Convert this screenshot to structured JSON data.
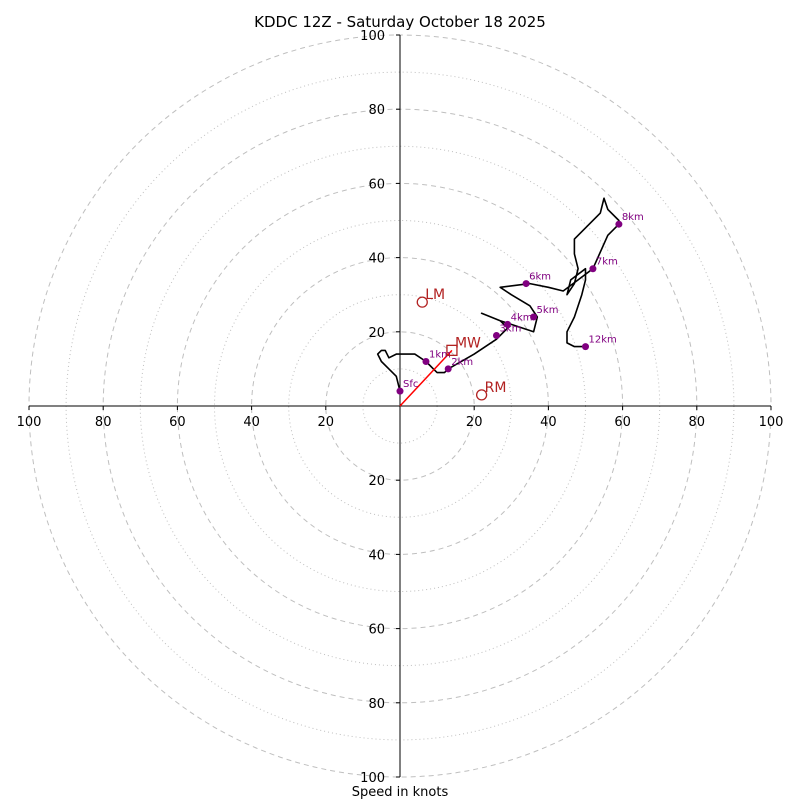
{
  "chart_data": {
    "type": "hodograph",
    "title": "KDDC 12Z - Saturday October 18 2025",
    "xlabel": "Speed in knots",
    "axis_range": [
      -100,
      100
    ],
    "ring_major": [
      20,
      40,
      60,
      80,
      100
    ],
    "ring_minor": [
      10,
      30,
      50,
      70,
      90
    ],
    "tick_values": [
      20,
      40,
      60,
      80,
      100
    ],
    "colors": {
      "trace": "#000000",
      "points": "#800080",
      "labels": "#800080",
      "motion": "#b22222",
      "mean_wind_vector": "#ff0000",
      "grid": "#bfbfbf"
    },
    "trace": [
      [
        0,
        4
      ],
      [
        -1,
        8
      ],
      [
        -3,
        10
      ],
      [
        -5,
        12
      ],
      [
        -6,
        14
      ],
      [
        -5,
        15
      ],
      [
        -4,
        15
      ],
      [
        -3,
        13
      ],
      [
        -1,
        14
      ],
      [
        4,
        14
      ],
      [
        7,
        12
      ],
      [
        9,
        10
      ],
      [
        10,
        9
      ],
      [
        12,
        9
      ],
      [
        13,
        10
      ],
      [
        20,
        14
      ],
      [
        26,
        18
      ],
      [
        29,
        21
      ],
      [
        27,
        23
      ],
      [
        22,
        25
      ],
      [
        27,
        23
      ],
      [
        30,
        22
      ],
      [
        36,
        20
      ],
      [
        37,
        24
      ],
      [
        35,
        27
      ],
      [
        30,
        30
      ],
      [
        27,
        32
      ],
      [
        35,
        33
      ],
      [
        40,
        32
      ],
      [
        44,
        31
      ],
      [
        48,
        34
      ],
      [
        52,
        37
      ],
      [
        56,
        46
      ],
      [
        59,
        49
      ],
      [
        59,
        50
      ],
      [
        56,
        53
      ],
      [
        55,
        56
      ],
      [
        54,
        52
      ],
      [
        47,
        45
      ],
      [
        47,
        41
      ],
      [
        48,
        37
      ],
      [
        47,
        33
      ],
      [
        45,
        30
      ],
      [
        46,
        34
      ],
      [
        50,
        37
      ],
      [
        50,
        34
      ],
      [
        49,
        30
      ],
      [
        47,
        24
      ],
      [
        45,
        20
      ],
      [
        45,
        17
      ],
      [
        47,
        16
      ],
      [
        50,
        16
      ]
    ],
    "heights": [
      {
        "label": "Sfc",
        "x": 0,
        "y": 4
      },
      {
        "label": "1km",
        "x": 7,
        "y": 12
      },
      {
        "label": "2km",
        "x": 13,
        "y": 10
      },
      {
        "label": "3km",
        "x": 26,
        "y": 19
      },
      {
        "label": "4km",
        "x": 29,
        "y": 22
      },
      {
        "label": "5km",
        "x": 36,
        "y": 24
      },
      {
        "label": "6km",
        "x": 34,
        "y": 33
      },
      {
        "label": "7km",
        "x": 52,
        "y": 37
      },
      {
        "label": "8km",
        "x": 59,
        "y": 49
      },
      {
        "label": "12km",
        "x": 50,
        "y": 16
      }
    ],
    "storm_motion": [
      {
        "label": "LM",
        "x": 6,
        "y": 28,
        "marker": "circle"
      },
      {
        "label": "MW",
        "x": 14,
        "y": 15,
        "marker": "square"
      },
      {
        "label": "RM",
        "x": 22,
        "y": 3,
        "marker": "circle"
      }
    ],
    "mean_wind_vector": {
      "x": 14,
      "y": 15
    }
  }
}
